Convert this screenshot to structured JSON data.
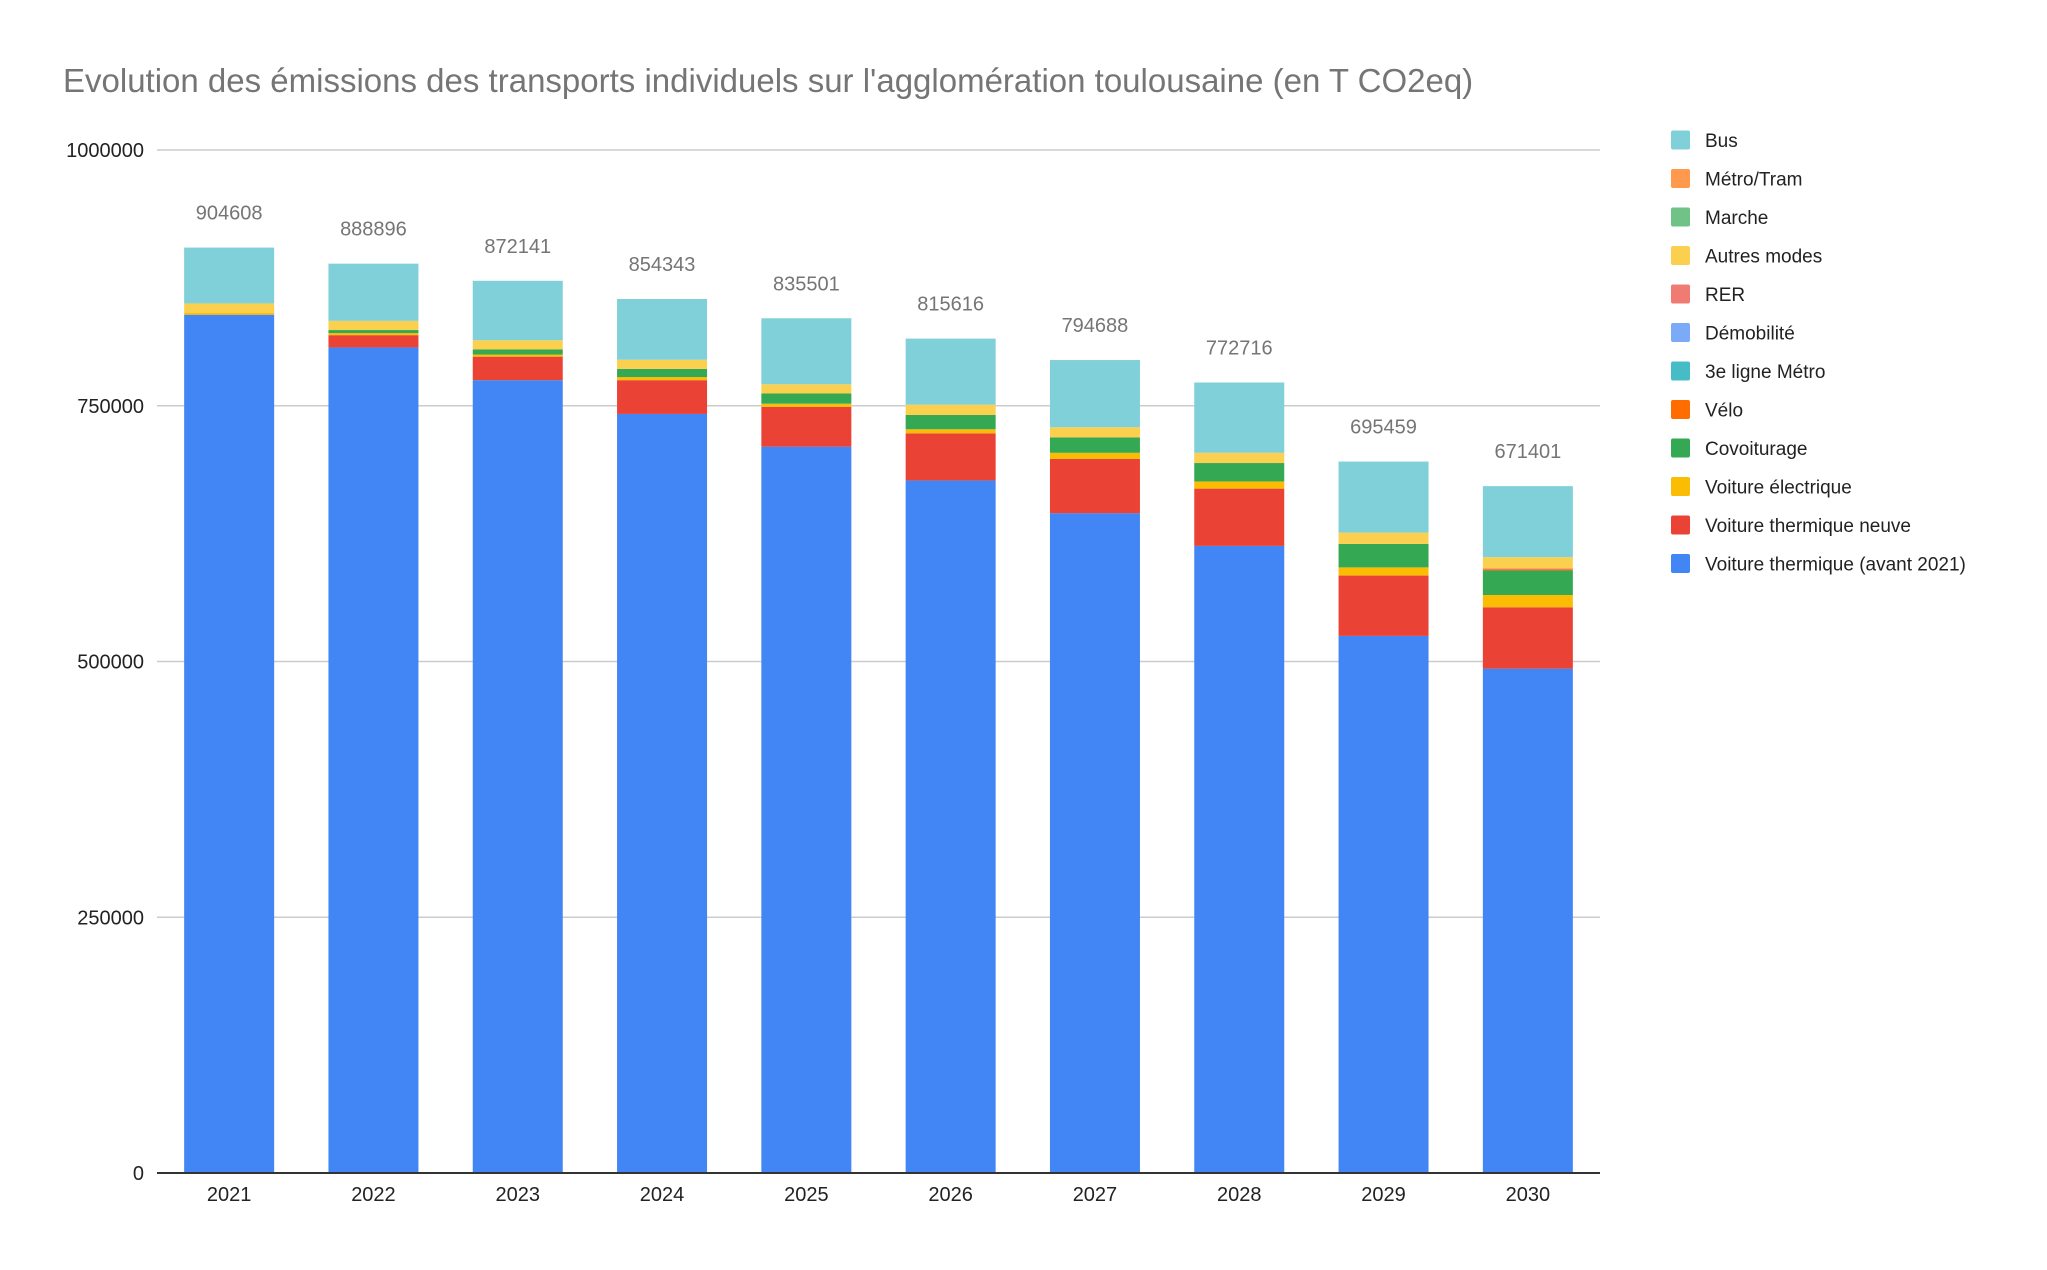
{
  "chart_data": {
    "type": "bar",
    "stacked": true,
    "title": "Evolution des émissions des transports individuels sur l'agglomération toulousaine (en T CO2eq)",
    "xlabel": "",
    "ylabel": "",
    "ylim": [
      0,
      1000000
    ],
    "yticks": [
      0,
      250000,
      500000,
      750000,
      1000000
    ],
    "grid": true,
    "legend_position": "right",
    "categories": [
      "2021",
      "2022",
      "2023",
      "2024",
      "2025",
      "2026",
      "2027",
      "2028",
      "2029",
      "2030"
    ],
    "totals": [
      904608,
      888896,
      872141,
      854343,
      835501,
      815616,
      794688,
      772716,
      695459,
      671401
    ],
    "series": [
      {
        "name": "Voiture thermique (avant 2021)",
        "color": "#4285f4",
        "values": [
          839000,
          807000,
          775000,
          742000,
          710000,
          677000,
          645000,
          613000,
          525000,
          493000
        ]
      },
      {
        "name": "Voiture thermique neuve",
        "color": "#ea4335",
        "values": [
          0,
          12000,
          23000,
          33000,
          39000,
          46000,
          53000,
          56000,
          59000,
          60000
        ]
      },
      {
        "name": "Voiture électrique",
        "color": "#fbbc04",
        "values": [
          2000,
          2000,
          2000,
          3000,
          3000,
          4000,
          6000,
          7000,
          8000,
          12000
        ]
      },
      {
        "name": "Covoiturage",
        "color": "#34a853",
        "values": [
          0,
          3000,
          5000,
          8000,
          10000,
          14000,
          15000,
          18000,
          23000,
          24000
        ]
      },
      {
        "name": "Vélo",
        "color": "#ff6d01",
        "values": [
          0,
          0,
          0,
          0,
          0,
          0,
          0,
          0,
          0,
          1000
        ]
      },
      {
        "name": "3e ligne Métro",
        "color": "#46bdc6",
        "values": [
          0,
          0,
          0,
          0,
          0,
          0,
          0,
          0,
          0,
          0
        ]
      },
      {
        "name": "Démobilité",
        "color": "#7baaf7",
        "values": [
          0,
          0,
          0,
          0,
          0,
          0,
          0,
          0,
          0,
          0
        ]
      },
      {
        "name": "RER",
        "color": "#f07b72",
        "values": [
          0,
          0,
          0,
          0,
          0,
          0,
          0,
          0,
          0,
          1000
        ]
      },
      {
        "name": "Autres modes",
        "color": "#fcd04f",
        "values": [
          9000,
          9000,
          9000,
          9000,
          9000,
          10000,
          10000,
          10000,
          11000,
          11000
        ]
      },
      {
        "name": "Marche",
        "color": "#71c287",
        "values": [
          0,
          0,
          0,
          0,
          0,
          0,
          0,
          0,
          0,
          0
        ]
      },
      {
        "name": "Métro/Tram",
        "color": "#ff994d",
        "values": [
          0,
          0,
          0,
          0,
          0,
          0,
          0,
          0,
          0,
          0
        ]
      },
      {
        "name": "Bus",
        "color": "#7fd0d8",
        "values": [
          54608,
          55896,
          58141,
          59343,
          64501,
          64616,
          65688,
          68716,
          69459,
          69401
        ]
      }
    ],
    "legend_order": [
      "Bus",
      "Métro/Tram",
      "Marche",
      "Autres modes",
      "RER",
      "Démobilité",
      "3e ligne Métro",
      "Vélo",
      "Covoiturage",
      "Voiture électrique",
      "Voiture thermique neuve",
      "Voiture thermique (avant 2021)"
    ],
    "colors": {
      "title": "#757575",
      "total_label": "#757575",
      "axis_text": "#222222",
      "gridline": "#cccccc",
      "axis_line": "#333333"
    }
  }
}
